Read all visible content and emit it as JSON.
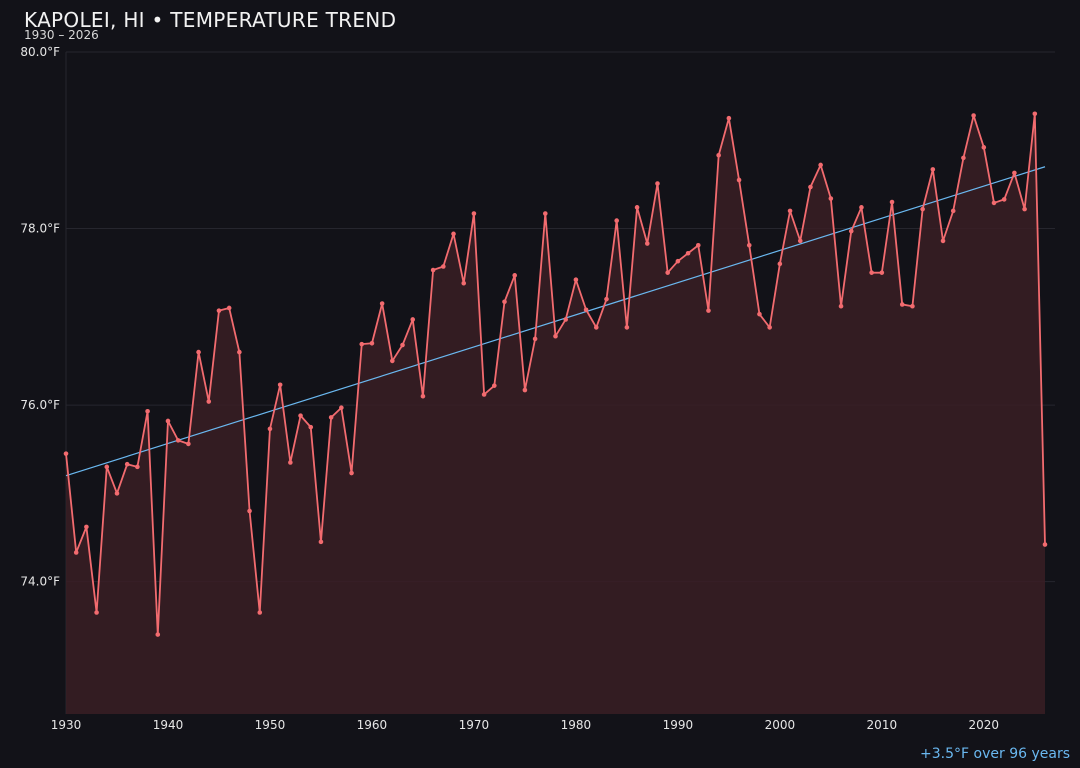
{
  "title": "KAPOLEI, HI • TEMPERATURE TREND",
  "subtitle": "1930 – 2026",
  "trend_note": "+3.5°F over 96 years",
  "colors": {
    "background": "#121218",
    "line": "#f26b6f",
    "area": "#3a1f25",
    "trend": "#6ab8f0",
    "grid": "#26262e",
    "text": "#e6e6e6"
  },
  "chart_data": {
    "type": "line",
    "title": "KAPOLEI, HI • TEMPERATURE TREND",
    "subtitle": "1930 – 2026",
    "xlabel": "",
    "ylabel": "",
    "x_ticks": [
      1930,
      1940,
      1950,
      1960,
      1970,
      1980,
      1990,
      2000,
      2010,
      2020
    ],
    "x_tick_labels": [
      "1930",
      "1940",
      "1950",
      "1960",
      "1970",
      "1980",
      "1990",
      "2000",
      "2010",
      "2020"
    ],
    "y_ticks": [
      74.0,
      76.0,
      78.0,
      80.0
    ],
    "y_tick_labels": [
      "74.0°F",
      "76.0°F",
      "78.0°F",
      "80.0°F"
    ],
    "xlim": [
      1930,
      2026
    ],
    "ylim": [
      72.5,
      80.0
    ],
    "grid": true,
    "x": [
      1930,
      1931,
      1932,
      1933,
      1934,
      1935,
      1936,
      1937,
      1938,
      1939,
      1940,
      1941,
      1942,
      1943,
      1944,
      1945,
      1946,
      1947,
      1948,
      1949,
      1950,
      1951,
      1952,
      1953,
      1954,
      1955,
      1956,
      1957,
      1958,
      1959,
      1960,
      1961,
      1962,
      1963,
      1964,
      1965,
      1966,
      1967,
      1968,
      1969,
      1970,
      1971,
      1972,
      1973,
      1974,
      1975,
      1976,
      1977,
      1978,
      1979,
      1980,
      1981,
      1982,
      1983,
      1984,
      1985,
      1986,
      1987,
      1988,
      1989,
      1990,
      1991,
      1992,
      1993,
      1994,
      1995,
      1996,
      1997,
      1998,
      1999,
      2000,
      2001,
      2002,
      2003,
      2004,
      2005,
      2006,
      2007,
      2008,
      2009,
      2010,
      2011,
      2012,
      2013,
      2014,
      2015,
      2016,
      2017,
      2018,
      2019,
      2020,
      2021,
      2022,
      2023,
      2024,
      2025,
      2026
    ],
    "series": [
      {
        "values": [
          75.45,
          74.33,
          74.62,
          73.65,
          75.3,
          75.0,
          75.33,
          75.3,
          75.93,
          73.4,
          75.82,
          75.6,
          75.56,
          76.6,
          76.04,
          77.07,
          77.1,
          76.6,
          74.8,
          73.65,
          75.73,
          76.23,
          75.35,
          75.88,
          75.75,
          74.45,
          75.86,
          75.97,
          75.23,
          76.69,
          76.7,
          77.15,
          76.5,
          76.68,
          76.97,
          76.1,
          77.53,
          77.57,
          77.94,
          77.38,
          78.17,
          76.12,
          76.22,
          77.17,
          77.47,
          76.17,
          76.75,
          78.17,
          76.78,
          76.97,
          77.42,
          77.08,
          76.88,
          77.2,
          78.09,
          76.88,
          78.24,
          77.83,
          78.51,
          77.5,
          77.63,
          77.72,
          77.81,
          77.07,
          78.83,
          79.25,
          78.55,
          77.81,
          77.03,
          76.88,
          77.6,
          78.2,
          77.86,
          78.47,
          78.72,
          78.34,
          77.12,
          77.97,
          78.24,
          77.5,
          77.5,
          78.3,
          77.14,
          77.12,
          78.22,
          78.67,
          77.86,
          78.2,
          78.8,
          79.28,
          78.92,
          78.29,
          78.33,
          78.63,
          78.22,
          79.3,
          74.42
        ]
      }
    ],
    "trend_line": {
      "x": [
        1930,
        2026
      ],
      "y": [
        75.2,
        78.7
      ]
    }
  }
}
